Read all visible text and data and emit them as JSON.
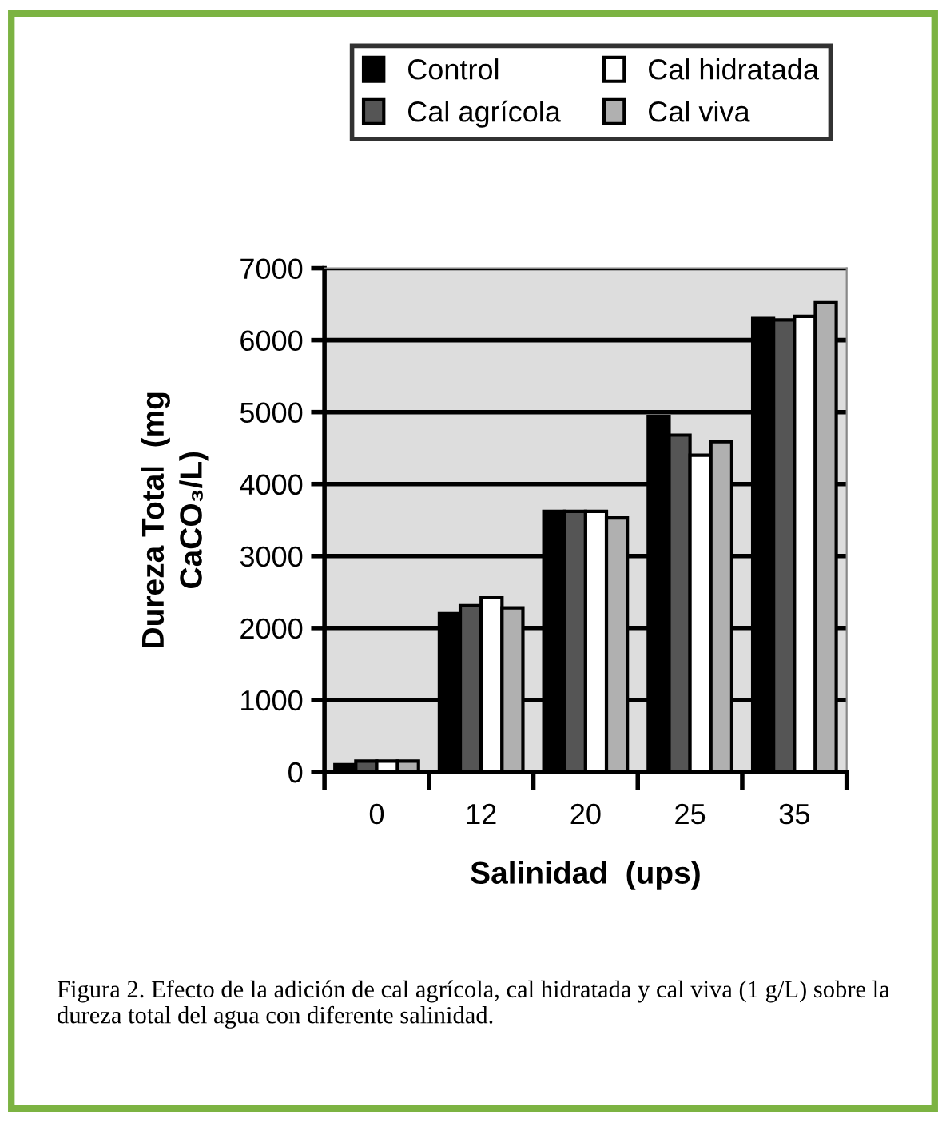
{
  "chart_data": {
    "type": "bar",
    "categories": [
      "0",
      "12",
      "20",
      "25",
      "35"
    ],
    "series": [
      {
        "name": "Control",
        "color": "#000000",
        "values": [
          100,
          2200,
          3620,
          4940,
          6300
        ]
      },
      {
        "name": "Cal agrícola",
        "color": "#555555",
        "values": [
          150,
          2310,
          3620,
          4680,
          6280
        ]
      },
      {
        "name": "Cal hidratada",
        "color": "#ffffff",
        "values": [
          150,
          2420,
          3620,
          4400,
          6330
        ]
      },
      {
        "name": "Cal viva",
        "color": "#b0b0b0",
        "values": [
          150,
          2280,
          3530,
          4590,
          6520
        ]
      }
    ],
    "xlabel": "Salinidad  (ups)",
    "ylabel": "Dureza Total  (mg\nCaCO₃/L)",
    "ylim": [
      0,
      7000
    ],
    "yticks": [
      0,
      1000,
      2000,
      3000,
      4000,
      5000,
      6000,
      7000
    ],
    "grid": "y",
    "legend": "top",
    "annotations": [
      "Figura 2. Efecto de la adición de cal agrícola, cal hidratada y cal viva (1 g/L) sobre la dureza total del agua con diferente salinidad."
    ]
  }
}
